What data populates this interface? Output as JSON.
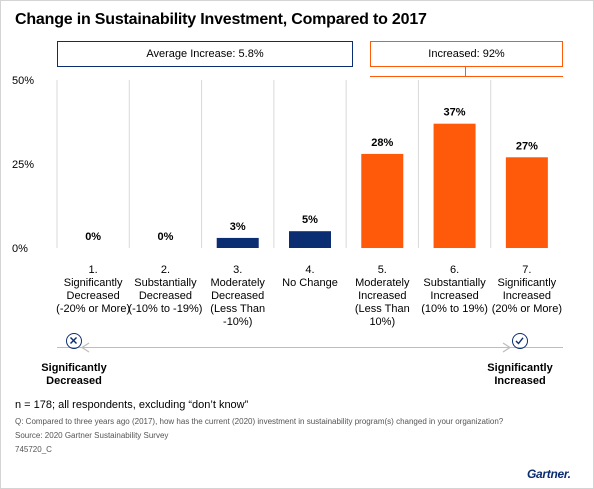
{
  "title": "Change in Sustainability Investment, Compared to 2017",
  "summary_left": "Average Increase: 5.8%",
  "summary_right": "Increased: 92%",
  "left_end_label": "Significantly\nDecreased",
  "right_end_label": "Significantly\nIncreased",
  "icons": {
    "left": "circle-x-icon",
    "right": "circle-check-icon",
    "arrow": "double-arrow-icon"
  },
  "footnote": "n = 178; all respondents, excluding “don’t know”",
  "question": "Q: Compared to three years ago (2017), how has the current (2020) investment in sustainability program(s) changed in your organization?",
  "source": "Source: 2020 Gartner Sustainability Survey",
  "doc_code": "745720_C",
  "logo": "Gartner.",
  "colors": {
    "navy": "#0b2d71",
    "orange": "#fe5a0a",
    "grid": "#d9d9d9"
  },
  "chart_data": {
    "type": "bar",
    "title": "Change in Sustainability Investment, Compared to 2017",
    "categories": [
      "1.\nSignificantly\nDecreased\n(-20% or More)",
      "2.\nSubstantially\nDecreased\n(-10% to -19%)",
      "3.\nModerately\nDecreased\n(Less Than\n-10%)",
      "4.\nNo Change",
      "5.\nModerately\nIncreased\n(Less Than\n10%)",
      "6.\nSubstantially\nIncreased\n(10% to 19%)",
      "7.\nSignificantly\nIncreased\n(20% or More)"
    ],
    "values": [
      0,
      0,
      3,
      5,
      28,
      37,
      27
    ],
    "value_labels": [
      "0%",
      "0%",
      "3%",
      "5%",
      "28%",
      "37%",
      "27%"
    ],
    "bar_colors": [
      "#0b2d71",
      "#0b2d71",
      "#0b2d71",
      "#0b2d71",
      "#fe5a0a",
      "#fe5a0a",
      "#fe5a0a"
    ],
    "yticks": [
      0,
      25,
      50
    ],
    "ytick_labels": [
      "0%",
      "25%",
      "50%"
    ],
    "ylim": [
      0,
      50
    ],
    "grid": false,
    "legend": "none"
  }
}
